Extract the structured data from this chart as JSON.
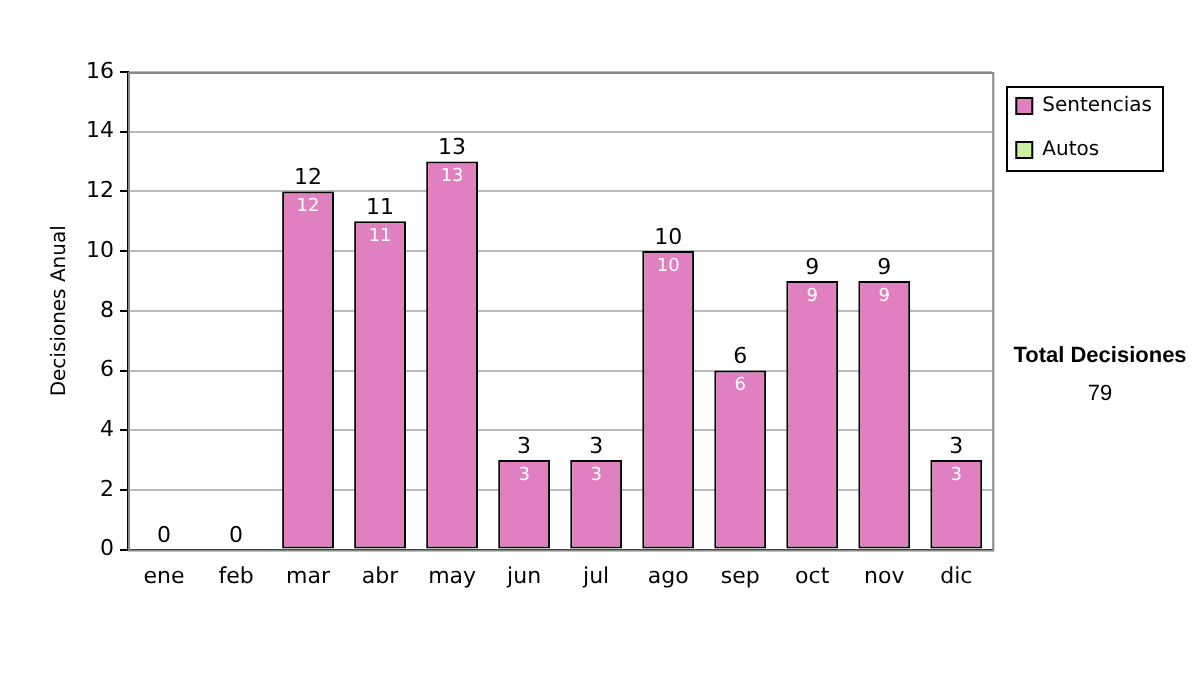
{
  "chart_data": {
    "type": "bar",
    "stacked": true,
    "ylabel": "Decisiones Anual",
    "categories": [
      "ene",
      "feb",
      "mar",
      "abr",
      "may",
      "jun",
      "jul",
      "ago",
      "sep",
      "oct",
      "nov",
      "dic"
    ],
    "series": [
      {
        "name": "Sentencias",
        "color": "#e080c0",
        "values": [
          0,
          0,
          12,
          11,
          13,
          3,
          3,
          10,
          6,
          9,
          9,
          3
        ],
        "value_labels": [
          null,
          null,
          "12",
          "11",
          "13",
          "3",
          "3",
          "10",
          "6",
          "9",
          "9",
          "3"
        ]
      },
      {
        "name": "Autos",
        "color": "#cceea0",
        "values": [
          0,
          0,
          0,
          0,
          0,
          0,
          0,
          0,
          0,
          0,
          0,
          0
        ]
      }
    ],
    "totals": [
      "0",
      "0",
      "12",
      "11",
      "13",
      "3",
      "3",
      "10",
      "6",
      "9",
      "9",
      "3"
    ],
    "ylim": [
      0,
      16
    ],
    "yticks": [
      0,
      2,
      4,
      6,
      8,
      10,
      12,
      14,
      16
    ],
    "grid": "y",
    "legend": "right",
    "annotations": [
      "Total Decisiones",
      "79"
    ]
  }
}
